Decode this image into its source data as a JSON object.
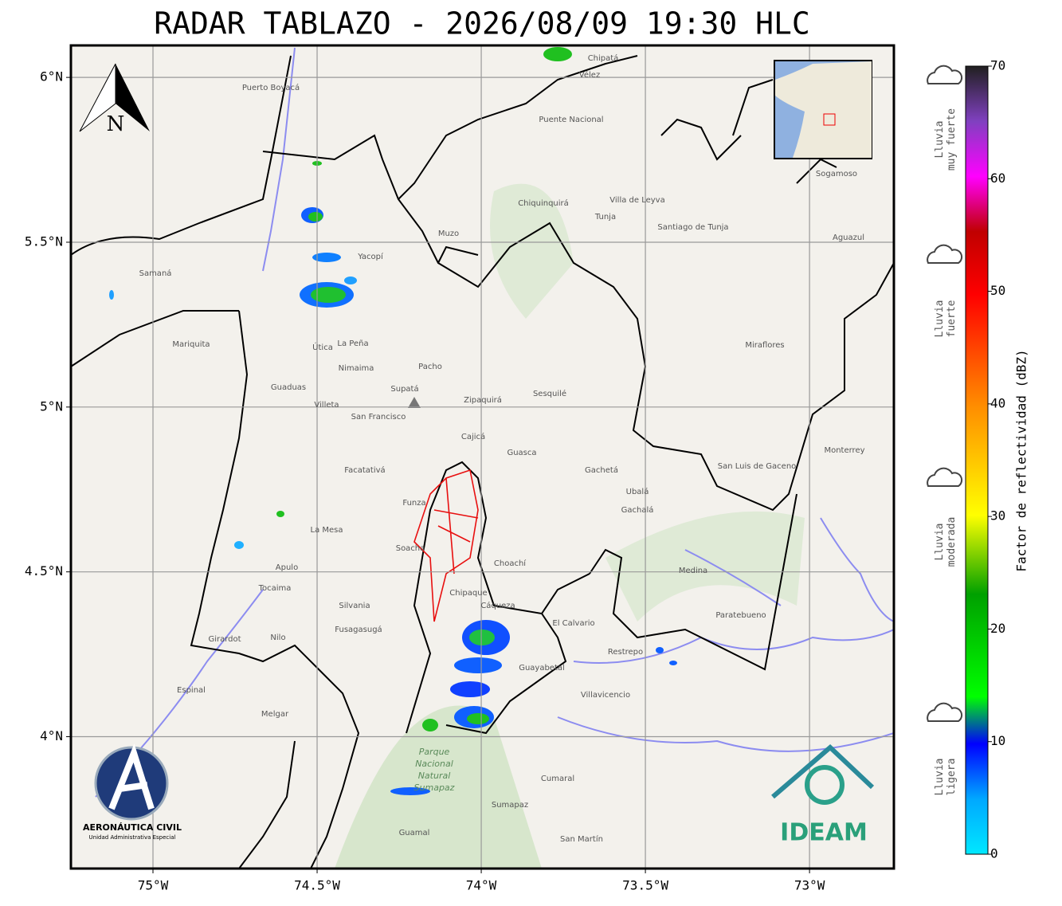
{
  "map": {
    "title": "RADAR TABLAZO - 2026/08/09 19:30 HLC",
    "xlim": [
      -75.25,
      -72.743
    ],
    "ylim": [
      3.6,
      6.097
    ],
    "xticks": [
      {
        "value": -75,
        "label": "75°W"
      },
      {
        "value": -74.5,
        "label": "74.5°W"
      },
      {
        "value": -74,
        "label": "74°W"
      },
      {
        "value": -73.5,
        "label": "73.5°W"
      },
      {
        "value": -73,
        "label": "73°W"
      }
    ],
    "yticks": [
      {
        "value": 4,
        "label": "4°N"
      },
      {
        "value": 4.5,
        "label": "4.5°N"
      },
      {
        "value": 5,
        "label": "5°N"
      },
      {
        "value": 5.5,
        "label": "5.5°N"
      },
      {
        "value": 6,
        "label": "6°N"
      }
    ],
    "grid": true,
    "north_label": "N",
    "places": [
      "Sogamoso",
      "Villa de Leyva",
      "Tunja",
      "Zipaquirá",
      "Villavicencio",
      "Chipatá",
      "Vélez",
      "Puente Nacional",
      "Chiquinquirá",
      "Guaduas",
      "La Mesa",
      "Fusagasugá",
      "Facatativá",
      "Funza",
      "Soacha",
      "Cajicá",
      "Guasca",
      "Gachetá",
      "Ubalá",
      "Gachalá",
      "Chipaque",
      "Cáqueza",
      "Guayabetal",
      "Restrepo",
      "Medina",
      "Paratebueno",
      "Sesquilé",
      "Pacho",
      "Yacopí",
      "Muzo",
      "Útica",
      "Villeta",
      "San Francisco",
      "Supatá",
      "Nimaima",
      "La Peña",
      "Puerto Boyacá",
      "Samaná",
      "Mariquita",
      "Espinal",
      "Melgar",
      "Girardot",
      "Tocaima",
      "Apulo",
      "Santiago de Tunja",
      "Miraflores",
      "Aguazul",
      "Monterrey",
      "San Luis de Gaceno",
      "Choachí",
      "El Calvario",
      "Cumaral",
      "San Martín",
      "Guamal",
      "Nilo",
      "Silvania",
      "Sumapaz"
    ],
    "park": [
      "Parque",
      "Nacional",
      "Natural",
      "Sumapaz"
    ],
    "colorbar": {
      "label": "Factor de reflectividad (dBZ)",
      "lim": [
        0,
        70
      ],
      "ticks": [
        0,
        10,
        20,
        30,
        40,
        50,
        60,
        70
      ]
    },
    "rain_levels": [
      [
        "Lluvia",
        "muy fuerte"
      ],
      [
        "Lluvia",
        "fuerte"
      ],
      [
        "Lluvia",
        "moderada"
      ],
      [
        "Lluvia",
        "ligera"
      ]
    ],
    "logos": {
      "aerocivil": "AERONÁUTICA CIVIL",
      "aerocivil_sub": "Unidad Administrativa Especial",
      "ideam": "IDEAM"
    }
  }
}
